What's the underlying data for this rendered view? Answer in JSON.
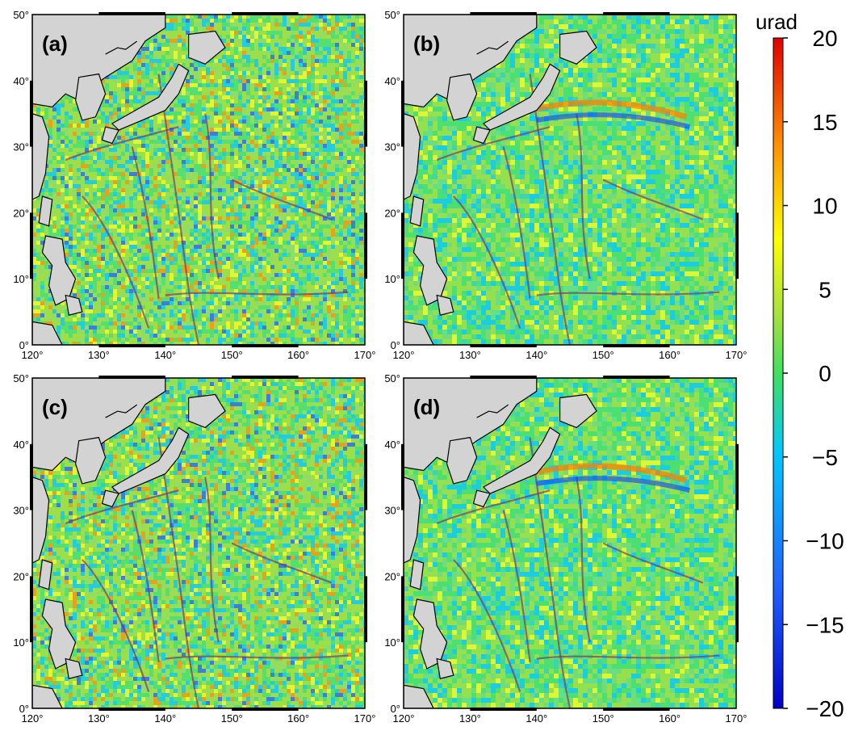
{
  "panels": [
    {
      "label": "(a)"
    },
    {
      "label": "(b)"
    },
    {
      "label": "(c)"
    },
    {
      "label": "(d)"
    }
  ],
  "lon_ticks": [
    "120°",
    "130°",
    "140°",
    "150°",
    "160°",
    "170°"
  ],
  "lat_ticks": [
    "0°",
    "10°",
    "20°",
    "30°",
    "40°",
    "50°"
  ],
  "lon_range": [
    120,
    170
  ],
  "lat_range": [
    0,
    50
  ],
  "colorbar": {
    "unit": "urad",
    "ticks": [
      "20",
      "15",
      "10",
      "5",
      "0",
      "−5",
      "−10",
      "−15",
      "−20"
    ],
    "range": [
      -20,
      20
    ],
    "colors": [
      "#0000c8",
      "#2050ff",
      "#00c8ff",
      "#40e080",
      "#a0e040",
      "#ffff00",
      "#ff9000",
      "#e00000"
    ]
  }
}
